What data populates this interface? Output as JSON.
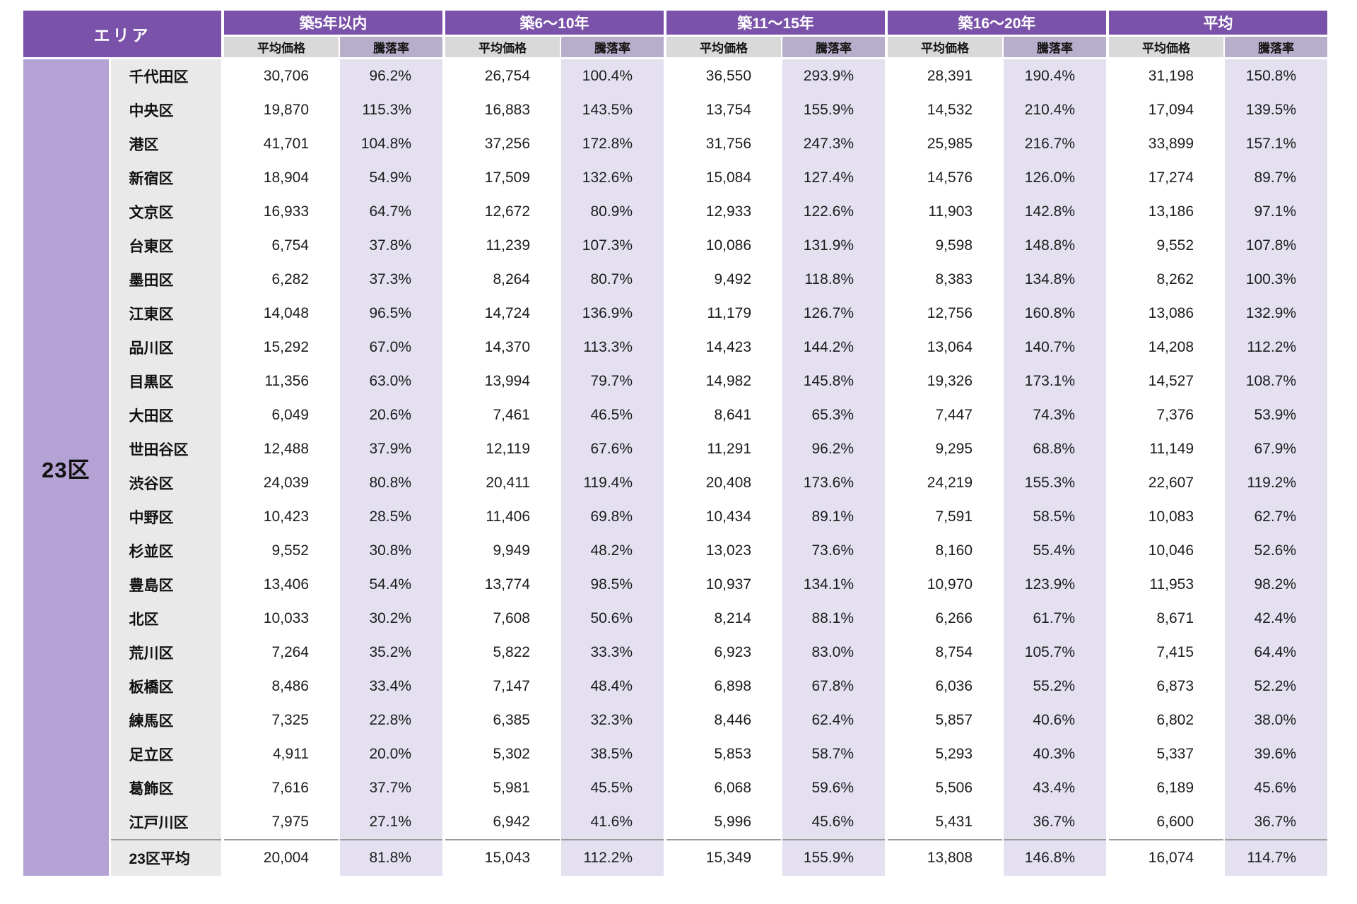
{
  "header": {
    "area_label": "エリア",
    "groups": [
      {
        "label": "築5年以内"
      },
      {
        "label": "築6〜10年"
      },
      {
        "label": "築11〜15年"
      },
      {
        "label": "築16〜20年"
      },
      {
        "label": "平均"
      }
    ],
    "metric_labels": [
      "平均価格",
      "騰落率"
    ]
  },
  "body": {
    "area_group_label": "23区",
    "summary_label": "23区平均"
  },
  "colors": {
    "header_purple": "#7a52a9",
    "subheader_gray": "#d9d9d9",
    "subheader_mauve": "#b7aecb",
    "area_column_purple": "#b3a2d3",
    "ward_column_gray": "#e9e9e9",
    "rate_column_lavender": "#e4e0f0",
    "price_column_white": "#ffffff",
    "summary_divider_gray": "#9b9b9b",
    "text_dark": "#1c1c1c"
  },
  "chart_data": {
    "type": "table",
    "title": "",
    "columns": [
      "エリア",
      "築5年以内 平均価格",
      "築5年以内 騰落率",
      "築6〜10年 平均価格",
      "築6〜10年 騰落率",
      "築11〜15年 平均価格",
      "築11〜15年 騰落率",
      "築16〜20年 平均価格",
      "築16〜20年 騰落率",
      "平均 平均価格",
      "平均 騰落率"
    ],
    "price_unit": "number_with_comma",
    "rate_unit": "percent_one_decimal",
    "rows": [
      {
        "ward": "千代田区",
        "values": [
          30706,
          96.2,
          26754,
          100.4,
          36550,
          293.9,
          28391,
          190.4,
          31198,
          150.8
        ]
      },
      {
        "ward": "中央区",
        "values": [
          19870,
          115.3,
          16883,
          143.5,
          13754,
          155.9,
          14532,
          210.4,
          17094,
          139.5
        ]
      },
      {
        "ward": "港区",
        "values": [
          41701,
          104.8,
          37256,
          172.8,
          31756,
          247.3,
          25985,
          216.7,
          33899,
          157.1
        ]
      },
      {
        "ward": "新宿区",
        "values": [
          18904,
          54.9,
          17509,
          132.6,
          15084,
          127.4,
          14576,
          126.0,
          17274,
          89.7
        ]
      },
      {
        "ward": "文京区",
        "values": [
          16933,
          64.7,
          12672,
          80.9,
          12933,
          122.6,
          11903,
          142.8,
          13186,
          97.1
        ]
      },
      {
        "ward": "台東区",
        "values": [
          6754,
          37.8,
          11239,
          107.3,
          10086,
          131.9,
          9598,
          148.8,
          9552,
          107.8
        ]
      },
      {
        "ward": "墨田区",
        "values": [
          6282,
          37.3,
          8264,
          80.7,
          9492,
          118.8,
          8383,
          134.8,
          8262,
          100.3
        ]
      },
      {
        "ward": "江東区",
        "values": [
          14048,
          96.5,
          14724,
          136.9,
          11179,
          126.7,
          12756,
          160.8,
          13086,
          132.9
        ]
      },
      {
        "ward": "品川区",
        "values": [
          15292,
          67.0,
          14370,
          113.3,
          14423,
          144.2,
          13064,
          140.7,
          14208,
          112.2
        ]
      },
      {
        "ward": "目黒区",
        "values": [
          11356,
          63.0,
          13994,
          79.7,
          14982,
          145.8,
          19326,
          173.1,
          14527,
          108.7
        ]
      },
      {
        "ward": "大田区",
        "values": [
          6049,
          20.6,
          7461,
          46.5,
          8641,
          65.3,
          7447,
          74.3,
          7376,
          53.9
        ]
      },
      {
        "ward": "世田谷区",
        "values": [
          12488,
          37.9,
          12119,
          67.6,
          11291,
          96.2,
          9295,
          68.8,
          11149,
          67.9
        ]
      },
      {
        "ward": "渋谷区",
        "values": [
          24039,
          80.8,
          20411,
          119.4,
          20408,
          173.6,
          24219,
          155.3,
          22607,
          119.2
        ]
      },
      {
        "ward": "中野区",
        "values": [
          10423,
          28.5,
          11406,
          69.8,
          10434,
          89.1,
          7591,
          58.5,
          10083,
          62.7
        ]
      },
      {
        "ward": "杉並区",
        "values": [
          9552,
          30.8,
          9949,
          48.2,
          13023,
          73.6,
          8160,
          55.4,
          10046,
          52.6
        ]
      },
      {
        "ward": "豊島区",
        "values": [
          13406,
          54.4,
          13774,
          98.5,
          10937,
          134.1,
          10970,
          123.9,
          11953,
          98.2
        ]
      },
      {
        "ward": "北区",
        "values": [
          10033,
          30.2,
          7608,
          50.6,
          8214,
          88.1,
          6266,
          61.7,
          8671,
          42.4
        ]
      },
      {
        "ward": "荒川区",
        "values": [
          7264,
          35.2,
          5822,
          33.3,
          6923,
          83.0,
          8754,
          105.7,
          7415,
          64.4
        ]
      },
      {
        "ward": "板橋区",
        "values": [
          8486,
          33.4,
          7147,
          48.4,
          6898,
          67.8,
          6036,
          55.2,
          6873,
          52.2
        ]
      },
      {
        "ward": "練馬区",
        "values": [
          7325,
          22.8,
          6385,
          32.3,
          8446,
          62.4,
          5857,
          40.6,
          6802,
          38.0
        ]
      },
      {
        "ward": "足立区",
        "values": [
          4911,
          20.0,
          5302,
          38.5,
          5853,
          58.7,
          5293,
          40.3,
          5337,
          39.6
        ]
      },
      {
        "ward": "葛飾区",
        "values": [
          7616,
          37.7,
          5981,
          45.5,
          6068,
          59.6,
          5506,
          43.4,
          6189,
          45.6
        ]
      },
      {
        "ward": "江戸川区",
        "values": [
          7975,
          27.1,
          6942,
          41.6,
          5996,
          45.6,
          5431,
          36.7,
          6600,
          36.7
        ]
      }
    ],
    "summary_row": {
      "ward": "23区平均",
      "values": [
        20004,
        81.8,
        15043,
        112.2,
        15349,
        155.9,
        13808,
        146.8,
        16074,
        114.7
      ]
    }
  }
}
